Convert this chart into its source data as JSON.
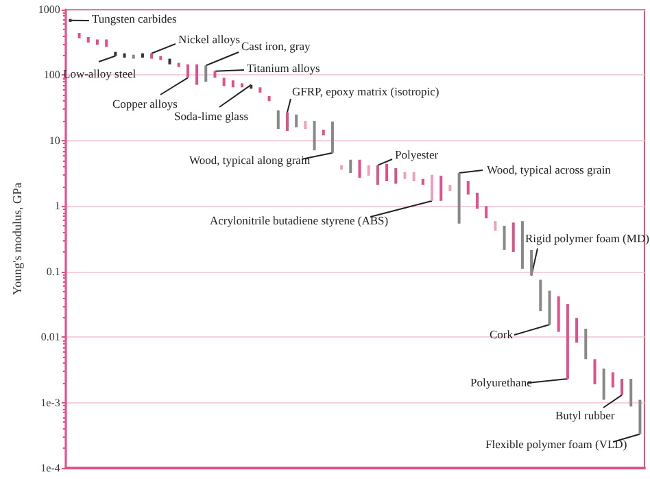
{
  "chart_data": {
    "type": "bar",
    "ylabel": "Young's modulus, GPa",
    "categories": [
      null,
      null,
      null,
      null,
      null,
      null,
      null,
      null,
      null,
      null,
      null,
      null,
      null,
      null,
      null,
      null,
      null,
      null,
      null,
      null,
      null,
      null,
      null,
      null,
      null,
      null,
      null,
      null,
      null,
      null,
      null,
      null,
      null,
      null,
      null,
      null,
      null,
      null,
      null,
      null,
      null,
      null,
      null,
      null,
      null,
      null,
      null,
      null,
      null,
      null,
      null,
      null,
      null,
      null,
      null,
      null,
      null,
      null,
      null,
      null,
      null,
      null,
      null,
      null
    ],
    "base": [
      650,
      365,
      315,
      290,
      270,
      196,
      185,
      178,
      185,
      178,
      170,
      146,
      133,
      91,
      71,
      79,
      91,
      68,
      65,
      65,
      62,
      54,
      40,
      15,
      14,
      16,
      15,
      7.1,
      12,
      6.5,
      3.6,
      3.2,
      2.7,
      2.9,
      2.1,
      2.4,
      2.2,
      2.6,
      2.4,
      2.1,
      1.2,
      1.2,
      1.7,
      0.54,
      1.5,
      0.91,
      0.65,
      0.42,
      0.215,
      0.2,
      0.11,
      0.087,
      0.025,
      0.0155,
      0.012,
      0.0023,
      0.0082,
      0.0046,
      0.0019,
      0.0011,
      0.0017,
      0.0013,
      0.00087,
      0.00033
    ],
    "values": [
      70,
      75,
      65,
      60,
      80,
      30,
      30,
      27,
      30,
      37,
      25,
      32,
      21,
      55,
      75,
      61,
      24,
      23,
      18,
      10,
      9,
      11,
      8,
      14,
      13,
      9,
      5,
      12.9,
      2.7,
      13,
      0.6,
      1.9,
      2.4,
      1.3,
      2.1,
      2,
      1.6,
      0.7,
      0.9,
      0.5,
      1.8,
      1.7,
      0.4,
      2.66,
      0.9,
      0.69,
      0.35,
      0.17,
      0.285,
      0.36,
      0.48,
      0.128,
      0.05,
      0.0355,
      0.03,
      0.0297,
      0.0114,
      0.0088,
      0.0027,
      0.0022,
      0.0012,
      0.001,
      0.00143,
      0.00077
    ],
    "colors": [
      "#333333",
      "#e0508a",
      "#e0508a",
      "#e0508a",
      "#e0508a",
      "#333333",
      "#333333",
      "#888888",
      "#333333",
      "#e0508a",
      "#e0508a",
      "#333333",
      "#e0508a",
      "#e0508a",
      "#e0508a",
      "#888888",
      "#e0508a",
      "#e0508a",
      "#e0508a",
      "#e0508a",
      "#333333",
      "#e0508a",
      "#e0508a",
      "#888888",
      "#e0508a",
      "#888888",
      "#eea0c0",
      "#888888",
      "#e0508a",
      "#888888",
      "#eea0c0",
      "#888888",
      "#e0508a",
      "#eea0c0",
      "#e0508a",
      "#e0508a",
      "#e0508a",
      "#eea0c0",
      "#eea0c0",
      "#e0508a",
      "#eea0c0",
      "#e0508a",
      "#eea0c0",
      "#888888",
      "#e0508a",
      "#e0508a",
      "#e0508a",
      "#eea0c0",
      "#888888",
      "#e0508a",
      "#888888",
      "#888888",
      "#888888",
      "#888888",
      "#e0508a",
      "#e0508a",
      "#e0508a",
      "#888888",
      "#e0508a",
      "#888888",
      "#e0508a",
      "#e0508a",
      "#888888",
      "#888888"
    ],
    "log": "y",
    "ylim": [
      0.0001,
      1000
    ],
    "yticks": [
      {
        "value": 0.0001,
        "label": "1e-4"
      },
      {
        "value": 0.001,
        "label": "1e-3"
      },
      0.01,
      0.1,
      1,
      10,
      100,
      1000
    ],
    "grid": "y",
    "annotations": [
      "Tungsten carbides",
      "Nickel alloys",
      "Cast iron, gray",
      "Low-alloy steel",
      "Titanium alloys",
      "Copper alloys",
      "Soda-lime glass",
      "GFRP, epoxy matrix (isotropic)",
      "Wood, typical along grain",
      "Polyester",
      "Acrylonitrile butadiene styrene (ABS)",
      "Wood, typical across grain",
      "Rigid polymer foam (MD)",
      "Cork",
      "Polyurethane",
      "Butyl rubber",
      "Flexible polymer foam (VLD)"
    ]
  }
}
